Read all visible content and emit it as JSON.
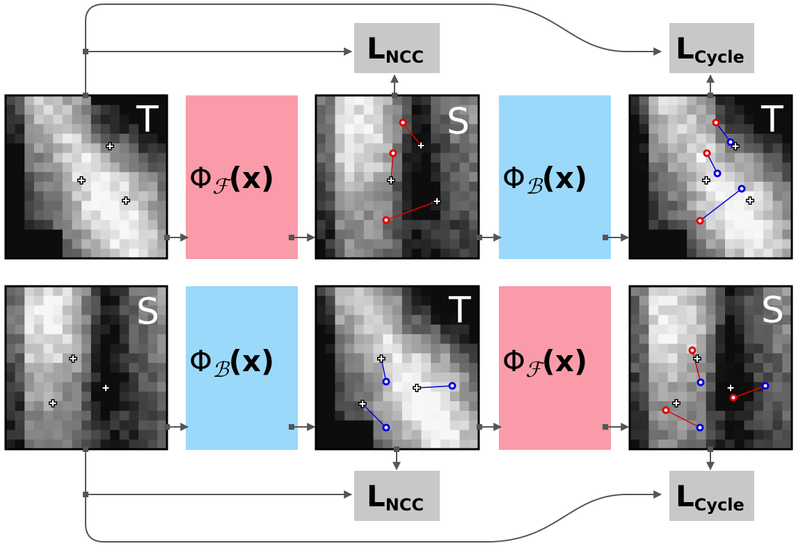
{
  "colors": {
    "forward_block": "#fa9ba9",
    "backward_block": "#9ad9f9",
    "loss_box": "#c8c8c8",
    "connector": "#555555",
    "landmark_before": "#e00000",
    "landmark_after": "#0000e0"
  },
  "top_row": {
    "image1_label": "T",
    "transform1": {
      "phi": "Φ",
      "sub": "ℱ",
      "arg": "(x)"
    },
    "image2_label": "S",
    "transform2": {
      "phi": "Φ",
      "sub": "ℬ",
      "arg": "(x)"
    },
    "image3_label": "T",
    "loss_ncc": {
      "main": "L",
      "sub": "NCC"
    },
    "loss_cycle": {
      "main": "L",
      "sub": "Cycle"
    }
  },
  "bottom_row": {
    "image1_label": "S",
    "transform1": {
      "phi": "Φ",
      "sub": "ℬ",
      "arg": "(x)"
    },
    "image2_label": "T",
    "transform2": {
      "phi": "Φ",
      "sub": "ℱ",
      "arg": "(x)"
    },
    "image3_label": "S",
    "loss_ncc": {
      "main": "L",
      "sub": "NCC"
    },
    "loss_cycle": {
      "main": "L",
      "sub": "Cycle"
    }
  },
  "landmark_icons": [
    "crosshair-marker-icon",
    "circle-marker-icon"
  ]
}
